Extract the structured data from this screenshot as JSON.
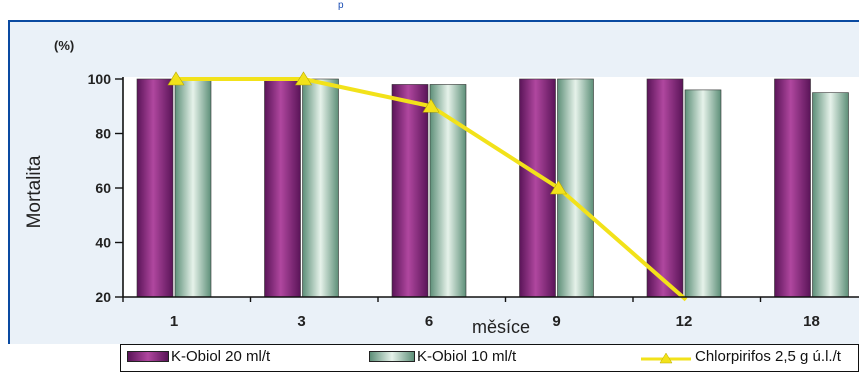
{
  "chart_data": {
    "type": "bar",
    "top_text": "p",
    "unit_label": "(%)",
    "ylabel": "Mortalita",
    "xlabel": "měsíce",
    "categories": [
      "1",
      "3",
      "6",
      "9",
      "12",
      "18"
    ],
    "ylim": [
      20,
      100
    ],
    "yticks": [
      20,
      40,
      60,
      80,
      100
    ],
    "series": [
      {
        "name": "K-Obiol 20 ml/t",
        "type": "bar",
        "color": "#8e2f86",
        "values": [
          100,
          100,
          98,
          100,
          100,
          100
        ]
      },
      {
        "name": "K-Obiol 10 ml/t",
        "type": "bar",
        "color": "#8fb8a0",
        "values": [
          100,
          100,
          98,
          100,
          96,
          95
        ]
      },
      {
        "name": "Chlorpirifos 2,5 g ú.l./t",
        "type": "line",
        "color": "#f2e21a",
        "values": [
          100,
          100,
          90,
          60,
          18,
          null
        ]
      }
    ],
    "grid": false,
    "legend_position": "bottom"
  }
}
